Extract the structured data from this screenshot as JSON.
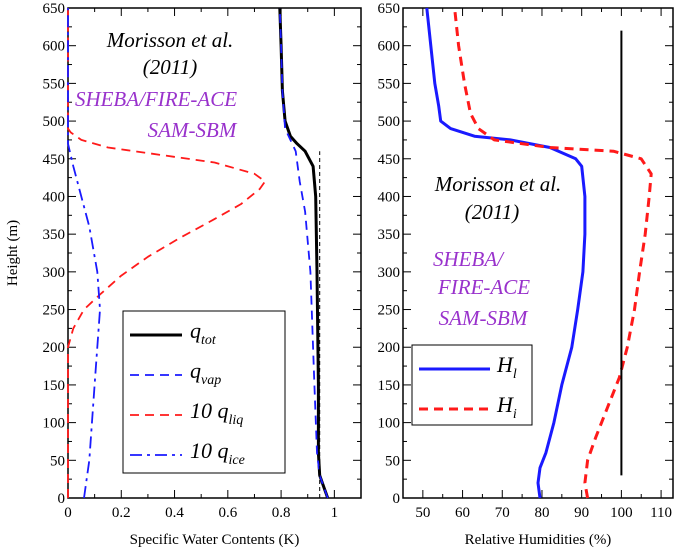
{
  "chart_data": [
    {
      "type": "line",
      "xlabel": "Specific Water Contents (K)",
      "ylabel": "Height (m)",
      "xlim": [
        0,
        1.1
      ],
      "ylim": [
        0,
        650
      ],
      "xticks": [
        "0",
        "0.2",
        "0.4",
        "0.6",
        "0.8",
        "1"
      ],
      "xtick_values": [
        0,
        0.2,
        0.4,
        0.6,
        0.8,
        1.0
      ],
      "yticks": [
        "0",
        "50",
        "100",
        "150",
        "200",
        "250",
        "300",
        "350",
        "400",
        "450",
        "500",
        "550",
        "600",
        "650"
      ],
      "ytick_values": [
        0,
        50,
        100,
        150,
        200,
        250,
        300,
        350,
        400,
        450,
        500,
        550,
        600,
        650
      ],
      "annotations": [
        {
          "text": "Morisson et al.",
          "color": "#000000"
        },
        {
          "text": "(2011)",
          "color": "#000000"
        },
        {
          "text": "SHEBA/FIRE-ACE",
          "color": "#9932CC"
        },
        {
          "text": "SAM-SBM",
          "color": "#9932CC"
        }
      ],
      "legend": [
        {
          "main": "q",
          "sub": "tot",
          "prefix": ""
        },
        {
          "main": "q",
          "sub": "vap",
          "prefix": ""
        },
        {
          "main": "q",
          "sub": "liq",
          "prefix": "10 "
        },
        {
          "main": "q",
          "sub": "ice",
          "prefix": "10 "
        }
      ],
      "series": [
        {
          "style": "solid",
          "color": "#000000",
          "width": 3,
          "points": [
            [
              0.975,
              0
            ],
            [
              0.96,
              15
            ],
            [
              0.945,
              30
            ],
            [
              0.94,
              60
            ],
            [
              0.94,
              150
            ],
            [
              0.935,
              300
            ],
            [
              0.93,
              400
            ],
            [
              0.92,
              440
            ],
            [
              0.89,
              460
            ],
            [
              0.86,
              470
            ],
            [
              0.835,
              480
            ],
            [
              0.815,
              500
            ],
            [
              0.805,
              540
            ],
            [
              0.8,
              600
            ],
            [
              0.795,
              650
            ]
          ]
        },
        {
          "style": "dashed",
          "color": "#1a1aff",
          "width": 1.8,
          "points": [
            [
              0.975,
              0
            ],
            [
              0.96,
              15
            ],
            [
              0.945,
              30
            ],
            [
              0.935,
              60
            ],
            [
              0.925,
              150
            ],
            [
              0.91,
              300
            ],
            [
              0.89,
              380
            ],
            [
              0.87,
              420
            ],
            [
              0.855,
              460
            ],
            [
              0.835,
              475
            ],
            [
              0.815,
              490
            ],
            [
              0.805,
              540
            ],
            [
              0.8,
              600
            ],
            [
              0.795,
              650
            ]
          ]
        },
        {
          "style": "dashed",
          "color": "#ff1a1a",
          "width": 1.8,
          "points": [
            [
              0,
              0
            ],
            [
              0,
              200
            ],
            [
              0.02,
              225
            ],
            [
              0.06,
              250
            ],
            [
              0.12,
              270
            ],
            [
              0.2,
              295
            ],
            [
              0.3,
              320
            ],
            [
              0.42,
              345
            ],
            [
              0.55,
              370
            ],
            [
              0.65,
              390
            ],
            [
              0.72,
              410
            ],
            [
              0.74,
              420
            ],
            [
              0.7,
              430
            ],
            [
              0.55,
              445
            ],
            [
              0.35,
              455
            ],
            [
              0.15,
              465
            ],
            [
              0.05,
              475
            ],
            [
              0.01,
              485
            ],
            [
              0,
              490
            ],
            [
              0,
              650
            ]
          ]
        },
        {
          "style": "dashdot",
          "color": "#1a1aff",
          "width": 1.8,
          "points": [
            [
              0.06,
              0
            ],
            [
              0.08,
              50
            ],
            [
              0.1,
              150
            ],
            [
              0.12,
              250
            ],
            [
              0.11,
              300
            ],
            [
              0.08,
              360
            ],
            [
              0.05,
              400
            ],
            [
              0.02,
              440
            ],
            [
              0,
              470
            ],
            [
              0,
              650
            ]
          ]
        },
        {
          "style": "thin-dashed",
          "color": "#000000",
          "width": 1,
          "points": [
            [
              0.945,
              0
            ],
            [
              0.945,
              460
            ]
          ]
        }
      ]
    },
    {
      "type": "line",
      "xlabel": "Relative Humidities (%)",
      "ylabel": "",
      "xlim": [
        45,
        113
      ],
      "ylim": [
        0,
        650
      ],
      "xticks": [
        "50",
        "60",
        "70",
        "80",
        "90",
        "100",
        "110"
      ],
      "xtick_values": [
        50,
        60,
        70,
        80,
        90,
        100,
        110
      ],
      "yticks": [
        "0",
        "50",
        "100",
        "150",
        "200",
        "250",
        "300",
        "350",
        "400",
        "450",
        "500",
        "550",
        "600",
        "650"
      ],
      "ytick_values": [
        0,
        50,
        100,
        150,
        200,
        250,
        300,
        350,
        400,
        450,
        500,
        550,
        600,
        650
      ],
      "annotations": [
        {
          "text": "Morisson et al.",
          "color": "#000000"
        },
        {
          "text": "(2011)",
          "color": "#000000"
        },
        {
          "text": "SHEBA/",
          "color": "#9932CC"
        },
        {
          "text": "FIRE-ACE",
          "color": "#9932CC"
        },
        {
          "text": "SAM-SBM",
          "color": "#9932CC"
        }
      ],
      "legend": [
        {
          "main": "H",
          "sub": "l"
        },
        {
          "main": "H",
          "sub": "i"
        }
      ],
      "series": [
        {
          "name": "H_l",
          "style": "solid",
          "color": "#1a1aff",
          "width": 3,
          "points": [
            [
              79.5,
              0
            ],
            [
              79,
              20
            ],
            [
              79.5,
              40
            ],
            [
              81,
              60
            ],
            [
              83,
              100
            ],
            [
              85,
              150
            ],
            [
              87.5,
              200
            ],
            [
              89,
              250
            ],
            [
              90.3,
              300
            ],
            [
              90.8,
              350
            ],
            [
              90.8,
              400
            ],
            [
              90,
              440
            ],
            [
              88.5,
              450
            ],
            [
              82,
              465
            ],
            [
              72,
              475
            ],
            [
              63,
              480
            ],
            [
              57,
              490
            ],
            [
              54.5,
              500
            ],
            [
              54,
              520
            ],
            [
              53,
              550
            ],
            [
              52,
              600
            ],
            [
              51,
              650
            ]
          ]
        },
        {
          "name": "H_i",
          "style": "dashed",
          "color": "#ff1a1a",
          "width": 3,
          "points": [
            [
              91.5,
              0
            ],
            [
              90.8,
              20
            ],
            [
              91.5,
              50
            ],
            [
              93.5,
              80
            ],
            [
              96.5,
              120
            ],
            [
              99.5,
              160
            ],
            [
              101.5,
              200
            ],
            [
              103.3,
              250
            ],
            [
              104.6,
              300
            ],
            [
              106,
              350
            ],
            [
              107,
              400
            ],
            [
              107.5,
              430
            ],
            [
              105,
              450
            ],
            [
              98,
              460
            ],
            [
              82,
              465
            ],
            [
              68,
              475
            ],
            [
              64,
              490
            ],
            [
              62,
              510
            ],
            [
              60.5,
              550
            ],
            [
              59,
              600
            ],
            [
              58,
              650
            ]
          ]
        },
        {
          "style": "solid",
          "color": "#000000",
          "width": 2,
          "points": [
            [
              100,
              30
            ],
            [
              100,
              620
            ]
          ]
        }
      ]
    }
  ]
}
